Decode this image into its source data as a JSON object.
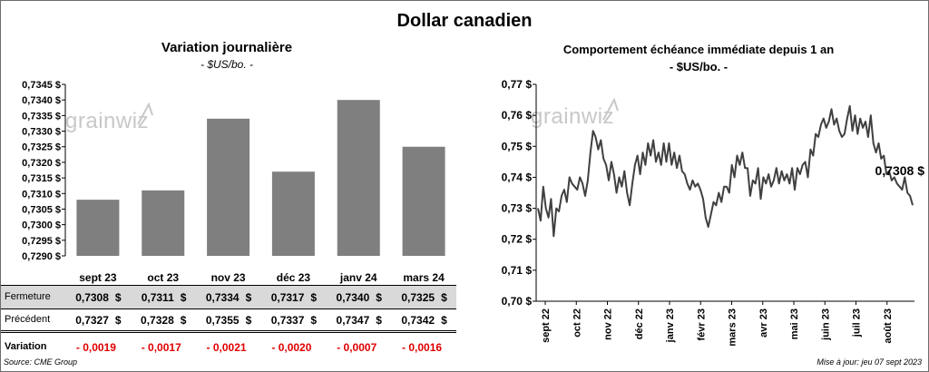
{
  "title": "Dollar canadien",
  "left": {
    "title": "Variation  journalière",
    "subtitle": "- $US/bo. -"
  },
  "right": {
    "title": "Comportement échéance immédiate depuis 1 an",
    "subtitle": "- $US/bo. -",
    "last_label": "0,7308 $"
  },
  "watermark": "grainwiz",
  "table": {
    "rows": [
      {
        "label": "Fermeture",
        "values": [
          "0,7308",
          "0,7311",
          "0,7334",
          "0,7317",
          "0,7340",
          "0,7325"
        ]
      },
      {
        "label": "Précédent",
        "values": [
          "0,7327",
          "0,7328",
          "0,7355",
          "0,7337",
          "0,7347",
          "0,7342"
        ]
      },
      {
        "label": "Variation",
        "values": [
          "- 0,0019",
          "- 0,0017",
          "- 0,0021",
          "- 0,0020",
          "- 0,0007",
          "- 0,0016"
        ]
      }
    ],
    "currency": "$"
  },
  "footer": {
    "source": "Source: CME Group",
    "updated": "Mise à jour: jeu 07 sept 2023"
  },
  "colors": {
    "bar": "#7f7f7f",
    "line": "#404040",
    "negative": "#e00000",
    "table_shade": "#d9d9d9"
  },
  "chart_data": [
    {
      "type": "bar",
      "categories": [
        "sept 23",
        "oct 23",
        "nov 23",
        "déc 23",
        "janv 24",
        "mars 24"
      ],
      "values": [
        0.7308,
        0.7311,
        0.7334,
        0.7317,
        0.734,
        0.7325
      ],
      "ylim": [
        0.729,
        0.7345
      ],
      "yticks": [
        "0,7290 $",
        "0,7295 $",
        "0,7300 $",
        "0,7305 $",
        "0,7310 $",
        "0,7315 $",
        "0,7320 $",
        "0,7325 $",
        "0,7330 $",
        "0,7335 $",
        "0,7340 $",
        "0,7345 $"
      ],
      "grid": false
    },
    {
      "type": "line",
      "xticks": [
        "sept 22",
        "oct 22",
        "nov 22",
        "déc 22",
        "janv 23",
        "févr 23",
        "mars 23",
        "avr 23",
        "mai 23",
        "juin 23",
        "juil 23",
        "août 23"
      ],
      "ylim": [
        0.7,
        0.77
      ],
      "yticks": [
        "0,70 $",
        "0,71 $",
        "0,72 $",
        "0,73 $",
        "0,74 $",
        "0,75 $",
        "0,76 $",
        "0,77 $"
      ],
      "grid": false,
      "values": [
        0.73,
        0.726,
        0.737,
        0.73,
        0.727,
        0.733,
        0.721,
        0.73,
        0.729,
        0.734,
        0.736,
        0.732,
        0.74,
        0.738,
        0.737,
        0.736,
        0.74,
        0.738,
        0.734,
        0.739,
        0.748,
        0.755,
        0.753,
        0.749,
        0.752,
        0.746,
        0.744,
        0.739,
        0.745,
        0.741,
        0.735,
        0.74,
        0.737,
        0.742,
        0.735,
        0.731,
        0.738,
        0.744,
        0.747,
        0.741,
        0.748,
        0.744,
        0.751,
        0.747,
        0.752,
        0.745,
        0.748,
        0.744,
        0.751,
        0.745,
        0.751,
        0.744,
        0.748,
        0.743,
        0.747,
        0.742,
        0.741,
        0.738,
        0.736,
        0.739,
        0.737,
        0.738,
        0.736,
        0.733,
        0.727,
        0.724,
        0.728,
        0.732,
        0.731,
        0.735,
        0.732,
        0.737,
        0.737,
        0.735,
        0.744,
        0.74,
        0.747,
        0.744,
        0.748,
        0.743,
        0.743,
        0.734,
        0.739,
        0.738,
        0.743,
        0.733,
        0.74,
        0.738,
        0.741,
        0.737,
        0.739,
        0.743,
        0.738,
        0.742,
        0.739,
        0.741,
        0.738,
        0.743,
        0.736,
        0.743,
        0.741,
        0.744,
        0.745,
        0.74,
        0.749,
        0.747,
        0.754,
        0.753,
        0.757,
        0.759,
        0.756,
        0.758,
        0.762,
        0.757,
        0.759,
        0.755,
        0.753,
        0.754,
        0.759,
        0.763,
        0.755,
        0.76,
        0.754,
        0.759,
        0.756,
        0.758,
        0.753,
        0.76,
        0.751,
        0.748,
        0.751,
        0.746,
        0.747,
        0.741,
        0.742,
        0.739,
        0.74,
        0.738,
        0.737,
        0.736,
        0.74,
        0.735,
        0.734,
        0.731
      ]
    }
  ]
}
